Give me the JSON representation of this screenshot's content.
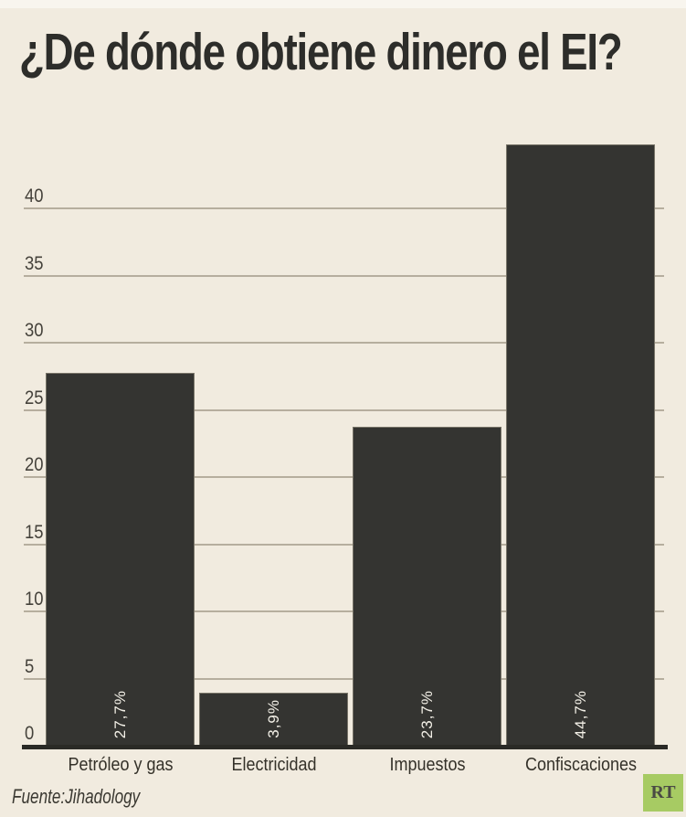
{
  "title": "¿De dónde obtiene dinero el EI?",
  "source": "Fuente:Jihadology",
  "brand": {
    "logo_text": "RT",
    "logo_color": "#a7cb63",
    "logo_text_color": "#4a4a44"
  },
  "chart_data": {
    "type": "bar",
    "title": "¿De dónde obtiene dinero el EI?",
    "categories": [
      "Petróleo y gas",
      "Electricidad",
      "Impuestos",
      "Confiscaciones"
    ],
    "values": [
      27.7,
      3.9,
      23.7,
      44.7
    ],
    "value_labels": [
      "27,7%",
      "3,9%",
      "23,7%",
      "44,7%"
    ],
    "yticks": [
      0,
      5,
      10,
      15,
      20,
      25,
      30,
      35,
      40
    ],
    "ylim": [
      0,
      45
    ],
    "xlabel": "",
    "ylabel": "",
    "grid": true,
    "legend": "none",
    "bar_color": "#343431",
    "grid_color": "#b6ae9e",
    "background_color": "#f1ebdf",
    "value_label_color": "#f3f0e7"
  }
}
